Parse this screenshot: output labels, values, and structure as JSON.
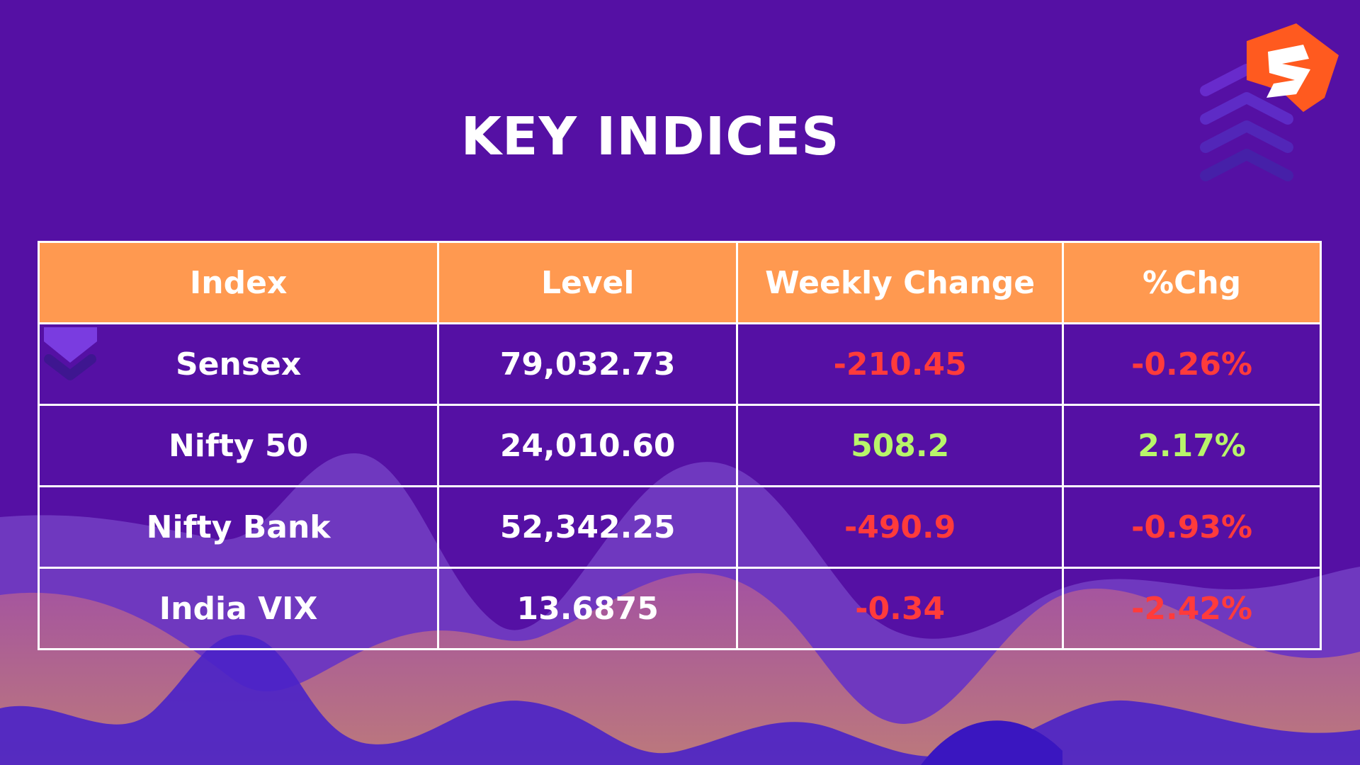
{
  "title": "KEY INDICES",
  "brand_colors": {
    "background": "#5510a4",
    "header": "#ff9950",
    "negative": "#ff3b3b",
    "positive": "#b8f56a",
    "logo": "#ff5a1f"
  },
  "logo_icon": "lightning-s-logo-icon",
  "table": {
    "headers": [
      "Index",
      "Level",
      "Weekly Change",
      "%Chg"
    ],
    "rows": [
      {
        "index": "Sensex",
        "level": "79,032.73",
        "change": "-210.45",
        "pct": "-0.26%",
        "trend": "negative"
      },
      {
        "index": "Nifty 50",
        "level": "24,010.60",
        "change": "508.2",
        "pct": "2.17%",
        "trend": "positive"
      },
      {
        "index": "Nifty Bank",
        "level": "52,342.25",
        "change": "-490.9",
        "pct": "-0.93%",
        "trend": "negative"
      },
      {
        "index": "India VIX",
        "level": "13.6875",
        "change": "-0.34",
        "pct": "-2.42%",
        "trend": "negative"
      }
    ]
  }
}
